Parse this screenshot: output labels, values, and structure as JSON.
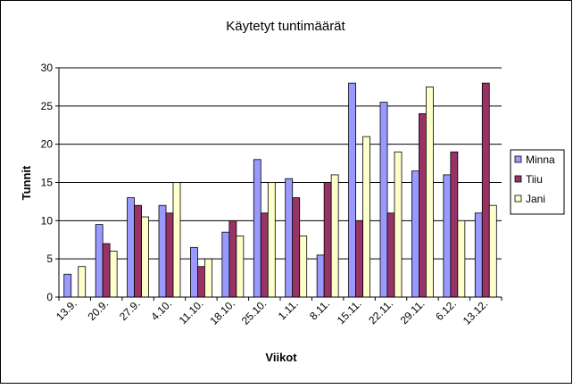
{
  "chart_data": {
    "type": "bar",
    "title": "Käytetyt tuntimäärät",
    "xlabel": "Viikot",
    "ylabel": "Tunnit",
    "ylim": [
      0,
      30
    ],
    "yticks": [
      0,
      5,
      10,
      15,
      20,
      25,
      30
    ],
    "grid": true,
    "legend_position": "right",
    "categories": [
      "13.9.",
      "20.9.",
      "27.9.",
      "4.10.",
      "11.10.",
      "18.10.",
      "25.10.",
      "1.11.",
      "8.11.",
      "15.11.",
      "22.11.",
      "29.11.",
      "6.12.",
      "13.12."
    ],
    "series": [
      {
        "name": "Minna",
        "color": "#9999FF",
        "values": [
          3,
          9.5,
          13,
          12,
          6.5,
          8.5,
          18,
          15.5,
          5.5,
          28,
          25.5,
          16.5,
          16,
          11
        ]
      },
      {
        "name": "Tiiu",
        "color": "#993366",
        "values": [
          0,
          7,
          12,
          11,
          4,
          10,
          11,
          13,
          15,
          10,
          11,
          24,
          19,
          28
        ]
      },
      {
        "name": "Jani",
        "color": "#FFFFCC",
        "values": [
          4,
          6,
          10.5,
          15,
          5,
          8,
          15,
          8,
          16,
          21,
          19,
          27.5,
          10,
          12
        ]
      }
    ]
  }
}
